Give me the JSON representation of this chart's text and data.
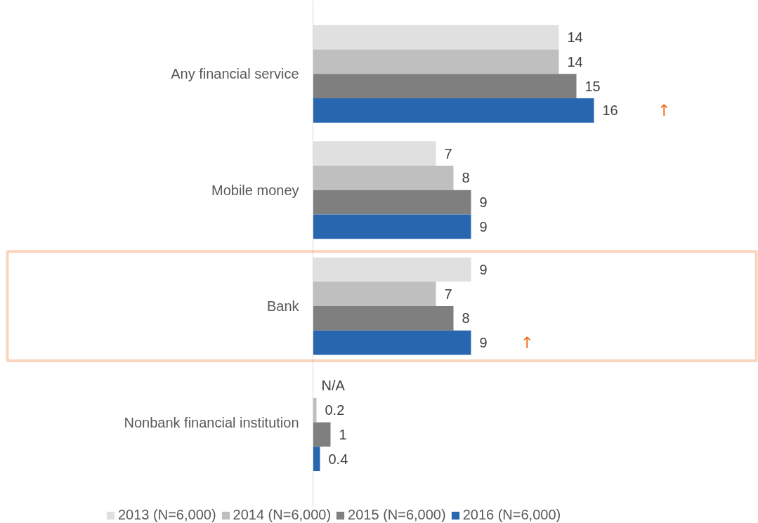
{
  "chart_data": {
    "type": "bar",
    "orientation": "horizontal",
    "categories": [
      "Any financial service",
      "Mobile money",
      "Bank",
      "Nonbank financial institution"
    ],
    "series": [
      {
        "name": "2013 (N=6,000)",
        "color": "#e0e0e0",
        "values": [
          14,
          7,
          9,
          null
        ],
        "value_labels": [
          "14",
          "7",
          "9",
          "N/A"
        ]
      },
      {
        "name": "2014 (N=6,000)",
        "color": "#bfbfbf",
        "values": [
          14,
          8,
          7,
          0.2
        ]
      },
      {
        "name": "2015 (N=6,000)",
        "color": "#7f7f7f",
        "values": [
          15,
          9,
          8,
          1
        ]
      },
      {
        "name": "2016 (N=6,000)",
        "color": "#2966b0",
        "values": [
          16,
          9,
          9,
          0.4
        ]
      }
    ],
    "data_labels": true,
    "legend": "bottom",
    "grid": false,
    "annotations": [
      "↑",
      "↑"
    ]
  }
}
